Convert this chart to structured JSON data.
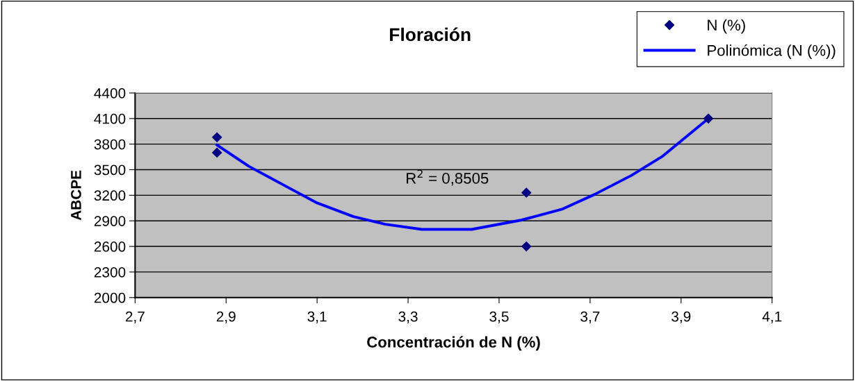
{
  "chart_data": {
    "type": "scatter",
    "title": "Floración",
    "xlabel": "Concentración de N (%)",
    "ylabel": "ABCPE",
    "series": [
      {
        "name": "N (%)",
        "color": "#000080",
        "marker": "diamond",
        "x": [
          2.88,
          2.88,
          3.56,
          3.56,
          3.96
        ],
        "values": [
          3880,
          3700,
          3230,
          2600,
          4100
        ]
      },
      {
        "name": "Polinómica (N (%))",
        "type": "line",
        "color": "#0000ff",
        "line_style": "solid",
        "x": [
          2.88,
          2.95,
          3.03,
          3.1,
          3.18,
          3.25,
          3.33,
          3.44,
          3.55,
          3.64,
          3.71,
          3.79,
          3.86,
          3.91,
          3.96
        ],
        "values": [
          3790,
          3540,
          3310,
          3110,
          2950,
          2860,
          2800,
          2800,
          2910,
          3040,
          3210,
          3430,
          3660,
          3880,
          4100
        ]
      }
    ],
    "annotations": [
      "R$^{2}$ = 0,8505"
    ],
    "xlim": [
      2.7,
      4.1
    ],
    "xticks": [
      {
        "value": 2.7,
        "label": "2,7"
      },
      {
        "value": 2.9,
        "label": "2,9"
      },
      {
        "value": 3.1,
        "label": "3,1"
      },
      {
        "value": 3.3,
        "label": "3,3"
      },
      {
        "value": 3.5,
        "label": "3,5"
      },
      {
        "value": 3.7,
        "label": "3,7"
      },
      {
        "value": 3.9,
        "label": "3,9"
      },
      {
        "value": 4.1,
        "label": "4,1"
      }
    ],
    "ylim": [
      2000,
      4400
    ],
    "yticks": [
      2000,
      2300,
      2600,
      2900,
      3200,
      3500,
      3800,
      4100,
      4400
    ],
    "grid": "y",
    "legend": "top right"
  }
}
